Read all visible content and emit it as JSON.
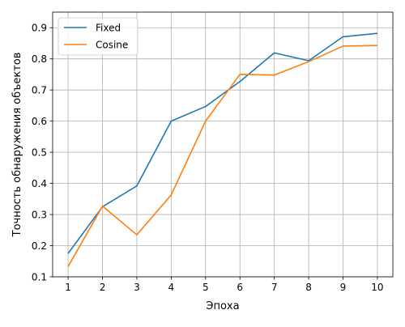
{
  "chart_data": {
    "type": "line",
    "xlabel": "Эпоха",
    "ylabel": "Точность обнаружения объектов",
    "x": [
      1,
      2,
      3,
      4,
      5,
      6,
      7,
      8,
      9,
      10
    ],
    "xlim": [
      0.55,
      10.45
    ],
    "ylim": [
      0.1,
      0.95
    ],
    "xticks": [
      "1",
      "2",
      "3",
      "4",
      "5",
      "6",
      "7",
      "8",
      "9",
      "10"
    ],
    "yticks": [
      "0.1",
      "0.2",
      "0.3",
      "0.4",
      "0.5",
      "0.6",
      "0.7",
      "0.8",
      "0.9"
    ],
    "grid": true,
    "legend": "top-left",
    "series": [
      {
        "name": "Fixed",
        "color": "#1f77b4",
        "values": [
          0.175,
          0.325,
          0.392,
          0.6,
          0.647,
          0.727,
          0.819,
          0.794,
          0.871,
          0.882
        ]
      },
      {
        "name": "Cosine",
        "color": "#ff7f0e",
        "values": [
          0.133,
          0.327,
          0.235,
          0.363,
          0.6,
          0.75,
          0.748,
          0.791,
          0.841,
          0.843
        ]
      }
    ]
  }
}
